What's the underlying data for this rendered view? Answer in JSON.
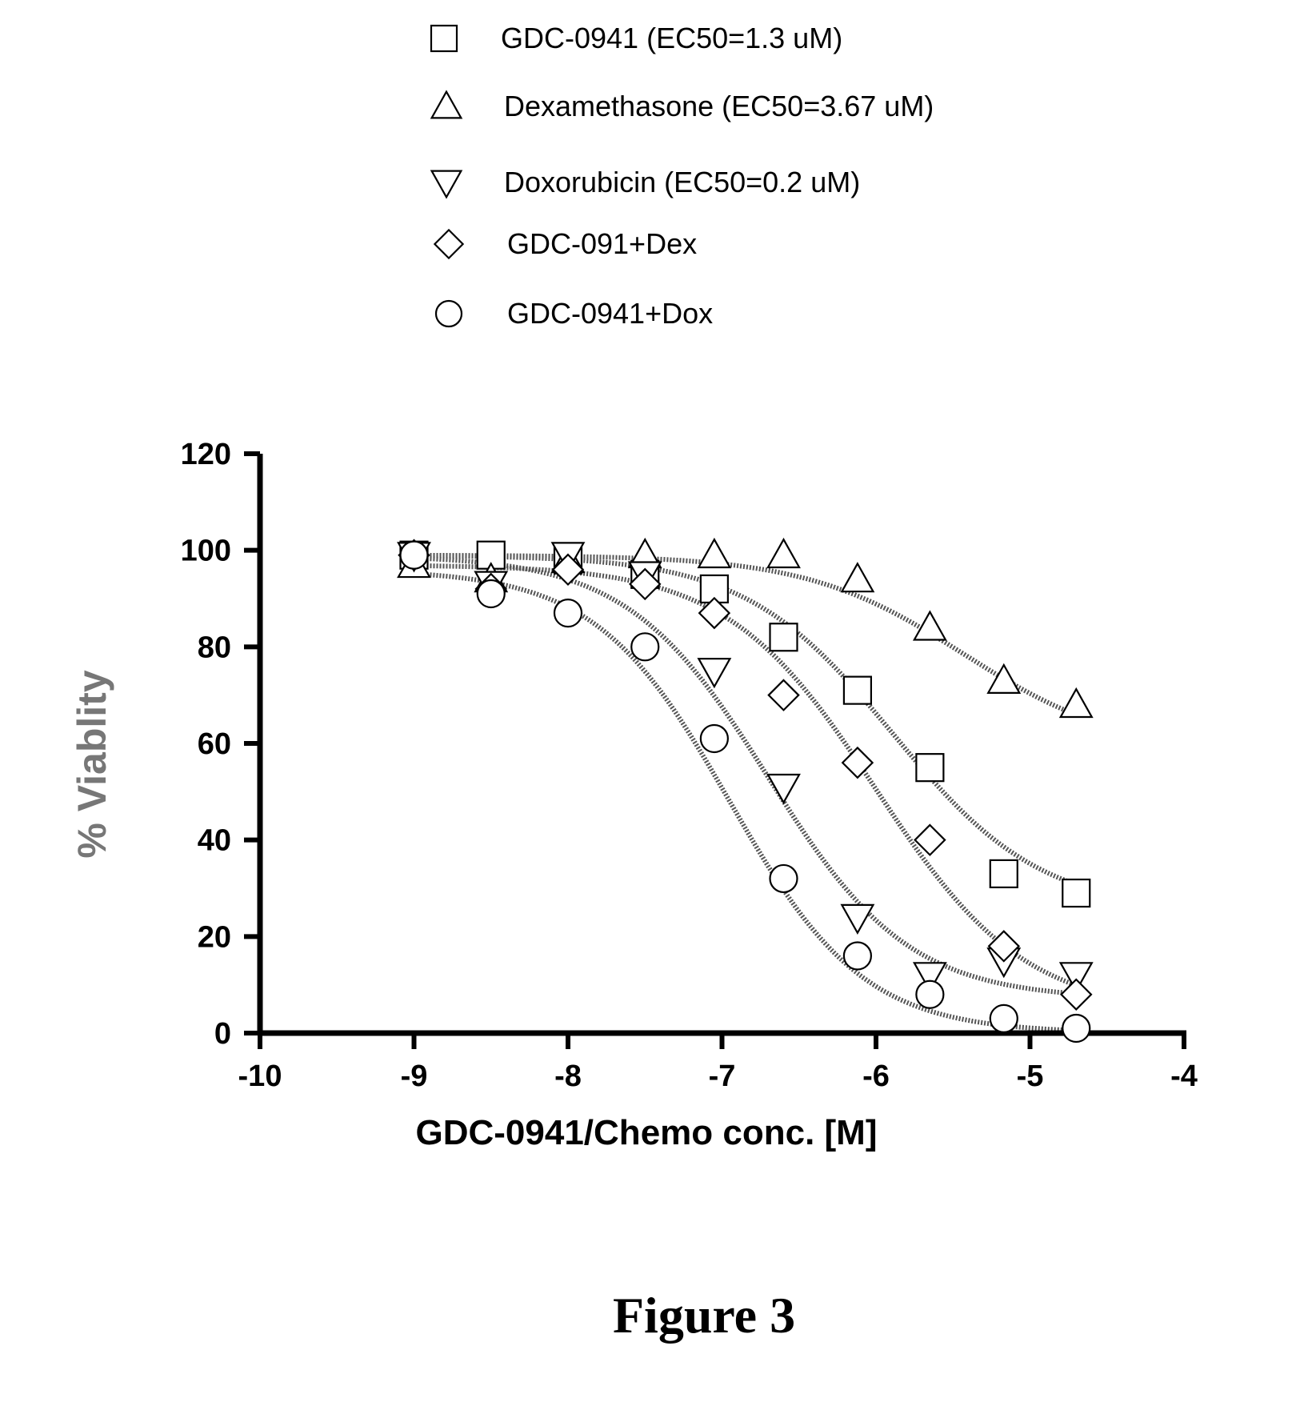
{
  "chart_data": {
    "type": "scatter",
    "title": "",
    "xlabel": "GDC-0941/Chemo conc. [M]",
    "ylabel": "% Viablity",
    "xlim": [
      -10,
      -4
    ],
    "ylim": [
      0,
      120
    ],
    "x_ticks": [
      "-10",
      "-9",
      "-8",
      "-7",
      "-6",
      "-5",
      "-4"
    ],
    "y_ticks": [
      "0",
      "20",
      "40",
      "60",
      "80",
      "100",
      "120"
    ],
    "legend_position": "top",
    "grid": false,
    "series": [
      {
        "name": "GDC-0941 (EC50=1.3 uM)",
        "marker": "square",
        "x": [
          -9.0,
          -8.5,
          -8.0,
          -7.5,
          -7.05,
          -6.6,
          -6.12,
          -5.65,
          -5.17,
          -4.7
        ],
        "y": [
          99,
          99,
          98,
          95,
          92,
          82,
          71,
          55,
          33,
          29
        ],
        "fit": {
          "bottom": 25,
          "top": 99,
          "logEC50": -5.89,
          "hill": 0.9
        }
      },
      {
        "name": "Dexamethasone (EC50=3.67 uM)",
        "marker": "triangle-up",
        "x": [
          -9.0,
          -8.5,
          -8.0,
          -7.5,
          -7.05,
          -6.6,
          -6.12,
          -5.65,
          -5.17,
          -4.7
        ],
        "y": [
          97,
          94,
          98,
          99,
          99,
          99,
          94,
          84,
          73,
          68
        ],
        "fit": {
          "bottom": 58,
          "top": 99,
          "logEC50": -5.43,
          "hill": 0.85
        }
      },
      {
        "name": "Doxorubicin (EC50=0.2 uM)",
        "marker": "triangle-down",
        "x": [
          -9.0,
          -8.5,
          -8.0,
          -7.5,
          -7.05,
          -6.6,
          -6.12,
          -5.65,
          -5.17,
          -4.7
        ],
        "y": [
          99,
          93,
          99,
          95,
          75,
          51,
          24,
          12,
          15,
          12
        ],
        "fit": {
          "bottom": 7,
          "top": 99,
          "logEC50": -6.7,
          "hill": 0.95
        }
      },
      {
        "name": "GDC-091+Dex",
        "marker": "diamond",
        "x": [
          -9.0,
          -8.5,
          -8.0,
          -7.5,
          -7.05,
          -6.6,
          -6.12,
          -5.65,
          -5.17,
          -4.7
        ],
        "y": [
          99,
          92,
          96,
          93,
          87,
          70,
          56,
          40,
          18,
          8
        ],
        "fit": {
          "bottom": 4,
          "top": 97,
          "logEC50": -6.0,
          "hill": 0.9
        }
      },
      {
        "name": "GDC-0941+Dox",
        "marker": "circle",
        "x": [
          -9.0,
          -8.5,
          -8.0,
          -7.5,
          -7.05,
          -6.6,
          -6.12,
          -5.65,
          -5.17,
          -4.7
        ],
        "y": [
          99,
          91,
          87,
          80,
          61,
          32,
          16,
          8,
          3,
          1
        ],
        "fit": {
          "bottom": 0,
          "top": 96,
          "logEC50": -6.95,
          "hill": 1.0
        }
      }
    ]
  },
  "caption": "Figure 3"
}
